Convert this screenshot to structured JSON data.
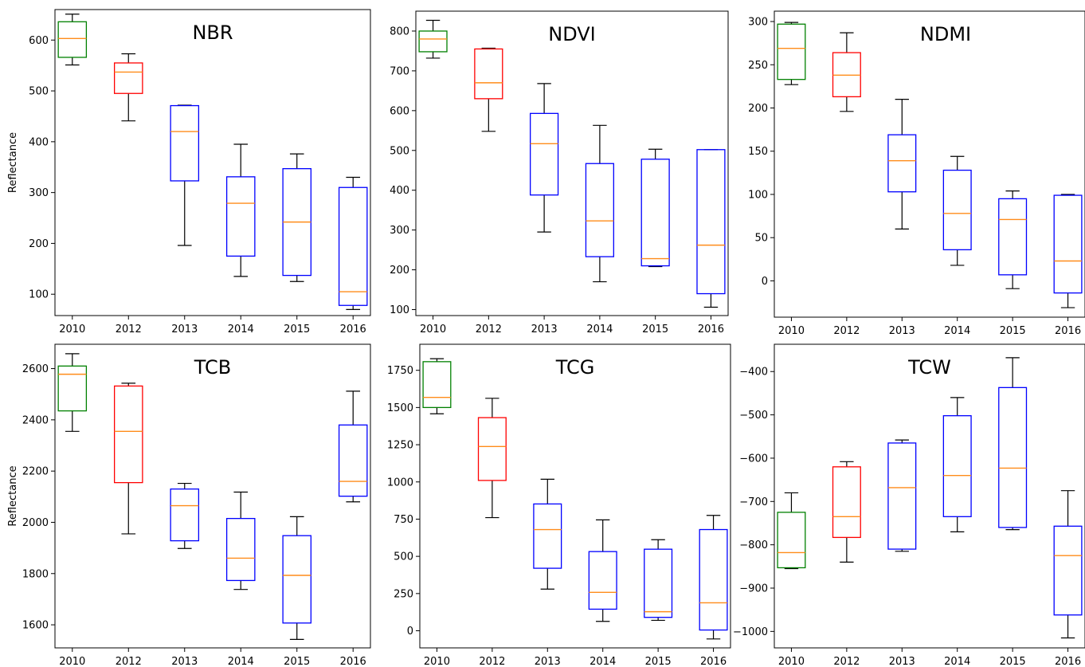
{
  "chart_data": [
    {
      "type": "box",
      "title": "NBR",
      "ylabel": "Reflectance",
      "ylim": [
        58,
        660
      ],
      "yticks": [
        100,
        200,
        300,
        400,
        500,
        600
      ],
      "categories": [
        "2010",
        "2012",
        "2013",
        "2014",
        "2015",
        "2016"
      ],
      "box_colors": [
        "#008000",
        "#ff0000",
        "#0000ff",
        "#0000ff",
        "#0000ff",
        "#0000ff"
      ],
      "boxes": [
        {
          "whislo": 551,
          "q1": 566,
          "med": 603,
          "q3": 636,
          "whishi": 651
        },
        {
          "whislo": 441,
          "q1": 495,
          "med": 537,
          "q3": 555,
          "whishi": 573
        },
        {
          "whislo": 196,
          "q1": 323,
          "med": 420,
          "q3": 471,
          "whishi": 472
        },
        {
          "whislo": 135,
          "q1": 175,
          "med": 279,
          "q3": 331,
          "whishi": 395
        },
        {
          "whislo": 125,
          "q1": 137,
          "med": 242,
          "q3": 347,
          "whishi": 376
        },
        {
          "whislo": 70,
          "q1": 78,
          "med": 105,
          "q3": 310,
          "whishi": 330
        }
      ]
    },
    {
      "type": "box",
      "title": "NDVI",
      "ylabel": "",
      "ylim": [
        85,
        850
      ],
      "yticks": [
        100,
        200,
        300,
        400,
        500,
        600,
        700,
        800
      ],
      "categories": [
        "2010",
        "2012",
        "2013",
        "2014",
        "2015",
        "2016"
      ],
      "box_colors": [
        "#008000",
        "#ff0000",
        "#0000ff",
        "#0000ff",
        "#0000ff",
        "#0000ff"
      ],
      "boxes": [
        {
          "whislo": 732,
          "q1": 748,
          "med": 780,
          "q3": 800,
          "whishi": 827
        },
        {
          "whislo": 548,
          "q1": 630,
          "med": 670,
          "q3": 755,
          "whishi": 757
        },
        {
          "whislo": 295,
          "q1": 388,
          "med": 517,
          "q3": 593,
          "whishi": 668
        },
        {
          "whislo": 170,
          "q1": 233,
          "med": 323,
          "q3": 467,
          "whishi": 563
        },
        {
          "whislo": 208,
          "q1": 210,
          "med": 228,
          "q3": 478,
          "whishi": 503
        },
        {
          "whislo": 106,
          "q1": 140,
          "med": 262,
          "q3": 502,
          "whishi": 502
        }
      ]
    },
    {
      "type": "box",
      "title": "NDMI",
      "ylabel": "",
      "ylim": [
        -42,
        312
      ],
      "yticks": [
        0,
        50,
        100,
        150,
        200,
        250,
        300
      ],
      "categories": [
        "2010",
        "2012",
        "2013",
        "2014",
        "2015",
        "2016"
      ],
      "box_colors": [
        "#008000",
        "#ff0000",
        "#0000ff",
        "#0000ff",
        "#0000ff",
        "#0000ff"
      ],
      "boxes": [
        {
          "whislo": 227,
          "q1": 233,
          "med": 269,
          "q3": 297,
          "whishi": 299
        },
        {
          "whislo": 196,
          "q1": 213,
          "med": 238,
          "q3": 264,
          "whishi": 287
        },
        {
          "whislo": 60,
          "q1": 103,
          "med": 139,
          "q3": 169,
          "whishi": 210
        },
        {
          "whislo": 18,
          "q1": 36,
          "med": 78,
          "q3": 128,
          "whishi": 144
        },
        {
          "whislo": -9,
          "q1": 7,
          "med": 71,
          "q3": 95,
          "whishi": 104
        },
        {
          "whislo": -31,
          "q1": -14,
          "med": 23,
          "q3": 99,
          "whishi": 100
        }
      ]
    },
    {
      "type": "box",
      "title": "TCB",
      "ylabel": "Reflectance",
      "ylim": [
        1510,
        2695
      ],
      "yticks": [
        1600,
        1800,
        2000,
        2200,
        2400,
        2600
      ],
      "categories": [
        "2010",
        "2012",
        "2013",
        "2014",
        "2015",
        "2016"
      ],
      "box_colors": [
        "#008000",
        "#ff0000",
        "#0000ff",
        "#0000ff",
        "#0000ff",
        "#0000ff"
      ],
      "boxes": [
        {
          "whislo": 2355,
          "q1": 2435,
          "med": 2578,
          "q3": 2610,
          "whishi": 2658
        },
        {
          "whislo": 1955,
          "q1": 2155,
          "med": 2355,
          "q3": 2532,
          "whishi": 2543
        },
        {
          "whislo": 1898,
          "q1": 1928,
          "med": 2065,
          "q3": 2130,
          "whishi": 2152
        },
        {
          "whislo": 1738,
          "q1": 1773,
          "med": 1860,
          "q3": 2015,
          "whishi": 2118
        },
        {
          "whislo": 1543,
          "q1": 1607,
          "med": 1793,
          "q3": 1948,
          "whishi": 2022
        },
        {
          "whislo": 2080,
          "q1": 2102,
          "med": 2160,
          "q3": 2380,
          "whishi": 2512
        }
      ]
    },
    {
      "type": "box",
      "title": "TCG",
      "ylabel": "",
      "ylim": [
        -115,
        1925
      ],
      "yticks": [
        0,
        250,
        500,
        750,
        1000,
        1250,
        1500,
        1750
      ],
      "categories": [
        "2010",
        "2012",
        "2013",
        "2014",
        "2015",
        "2016"
      ],
      "box_colors": [
        "#008000",
        "#ff0000",
        "#0000ff",
        "#0000ff",
        "#0000ff",
        "#0000ff"
      ],
      "boxes": [
        {
          "whislo": 1458,
          "q1": 1500,
          "med": 1568,
          "q3": 1808,
          "whishi": 1828
        },
        {
          "whislo": 760,
          "q1": 1010,
          "med": 1238,
          "q3": 1432,
          "whishi": 1562
        },
        {
          "whislo": 280,
          "q1": 420,
          "med": 680,
          "q3": 852,
          "whishi": 1018
        },
        {
          "whislo": 63,
          "q1": 145,
          "med": 258,
          "q3": 532,
          "whishi": 745
        },
        {
          "whislo": 70,
          "q1": 90,
          "med": 128,
          "q3": 548,
          "whishi": 612
        },
        {
          "whislo": -55,
          "q1": 5,
          "med": 188,
          "q3": 680,
          "whishi": 775
        }
      ]
    },
    {
      "type": "box",
      "title": "TCW",
      "ylabel": "",
      "ylim": [
        -1038,
        -337
      ],
      "yticks": [
        -1000,
        -900,
        -800,
        -700,
        -600,
        -500,
        -400
      ],
      "categories": [
        "2010",
        "2012",
        "2013",
        "2014",
        "2015",
        "2016"
      ],
      "box_colors": [
        "#008000",
        "#ff0000",
        "#0000ff",
        "#0000ff",
        "#0000ff",
        "#0000ff"
      ],
      "boxes": [
        {
          "whislo": -855,
          "q1": -853,
          "med": -818,
          "q3": -725,
          "whishi": -680
        },
        {
          "whislo": -840,
          "q1": -783,
          "med": -735,
          "q3": -620,
          "whishi": -608
        },
        {
          "whislo": -815,
          "q1": -810,
          "med": -668,
          "q3": -565,
          "whishi": -558
        },
        {
          "whislo": -770,
          "q1": -735,
          "med": -640,
          "q3": -502,
          "whishi": -460
        },
        {
          "whislo": -765,
          "q1": -760,
          "med": -623,
          "q3": -437,
          "whishi": -368
        },
        {
          "whislo": -1015,
          "q1": -962,
          "med": -825,
          "q3": -757,
          "whishi": -675
        }
      ]
    }
  ]
}
